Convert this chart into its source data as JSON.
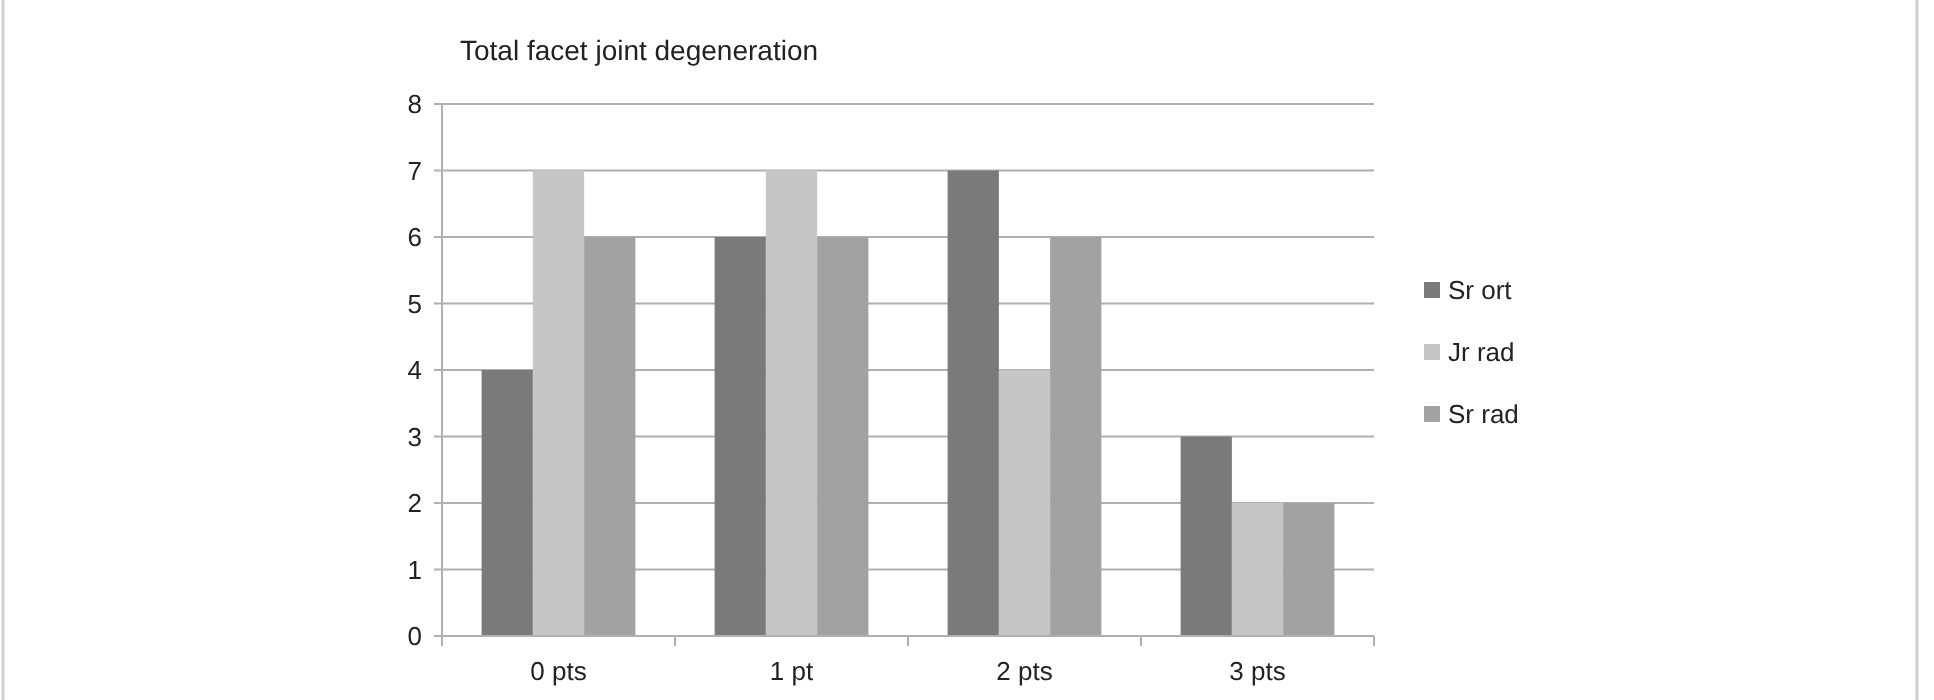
{
  "chart_data": {
    "type": "bar",
    "title": "Total facet joint degeneration",
    "categories": [
      "0 pts",
      "1 pt",
      "2 pts",
      "3 pts"
    ],
    "series": [
      {
        "name": "Sr ort",
        "color": "#7a7a7a",
        "values": [
          4,
          6,
          7,
          3
        ]
      },
      {
        "name": "Jr rad",
        "color": "#c6c6c6",
        "values": [
          7,
          7,
          4,
          2
        ]
      },
      {
        "name": "Sr rad",
        "color": "#a2a2a2",
        "values": [
          6,
          6,
          6,
          2
        ]
      }
    ],
    "ylim": [
      0,
      8
    ],
    "yticks": [
      0,
      1,
      2,
      3,
      4,
      5,
      6,
      7,
      8
    ],
    "grid": "y",
    "legend": "right"
  }
}
